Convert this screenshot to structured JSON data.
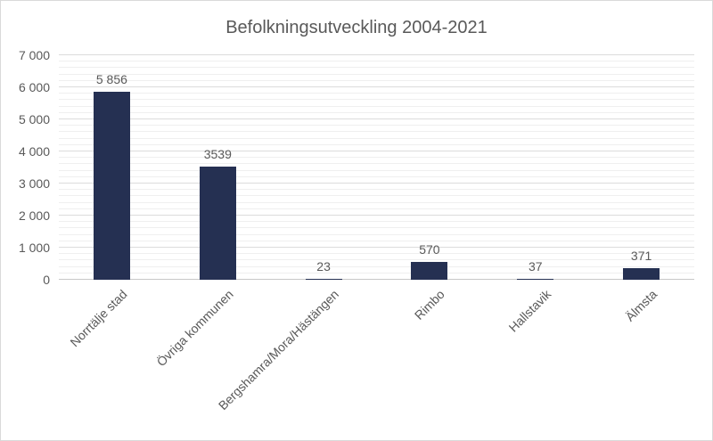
{
  "chart_data": {
    "type": "bar",
    "title": "Befolkningsutveckling 2004-2021",
    "categories": [
      "Norrtälje stad",
      "Övriga kommunen",
      "Bergshamra/Mora/Hästängen",
      "Rimbo",
      "Hallstavik",
      "Älmsta"
    ],
    "values": [
      5856,
      3539,
      23,
      570,
      37,
      371
    ],
    "data_labels": [
      "5 856",
      "3539",
      "23",
      "570",
      "37",
      "371"
    ],
    "xlabel": "",
    "ylabel": "",
    "ylim": [
      0,
      7000
    ],
    "ytick_interval": 1000,
    "minor_gridline_interval": 200,
    "ytick_labels": [
      "0",
      "1 000",
      "2 000",
      "3 000",
      "4 000",
      "5 000",
      "6 000",
      "7 000"
    ],
    "grid": "major and minor horizontal gridlines",
    "legend": false,
    "colors": {
      "bar": "#253052",
      "title_text": "#595959",
      "axis_text": "#595959",
      "major_gridline": "#dcdcdc",
      "minor_gridline": "#efefef",
      "axis_line": "#c8c8c8",
      "background": "#ffffff",
      "border": "#d9d9d9"
    }
  }
}
